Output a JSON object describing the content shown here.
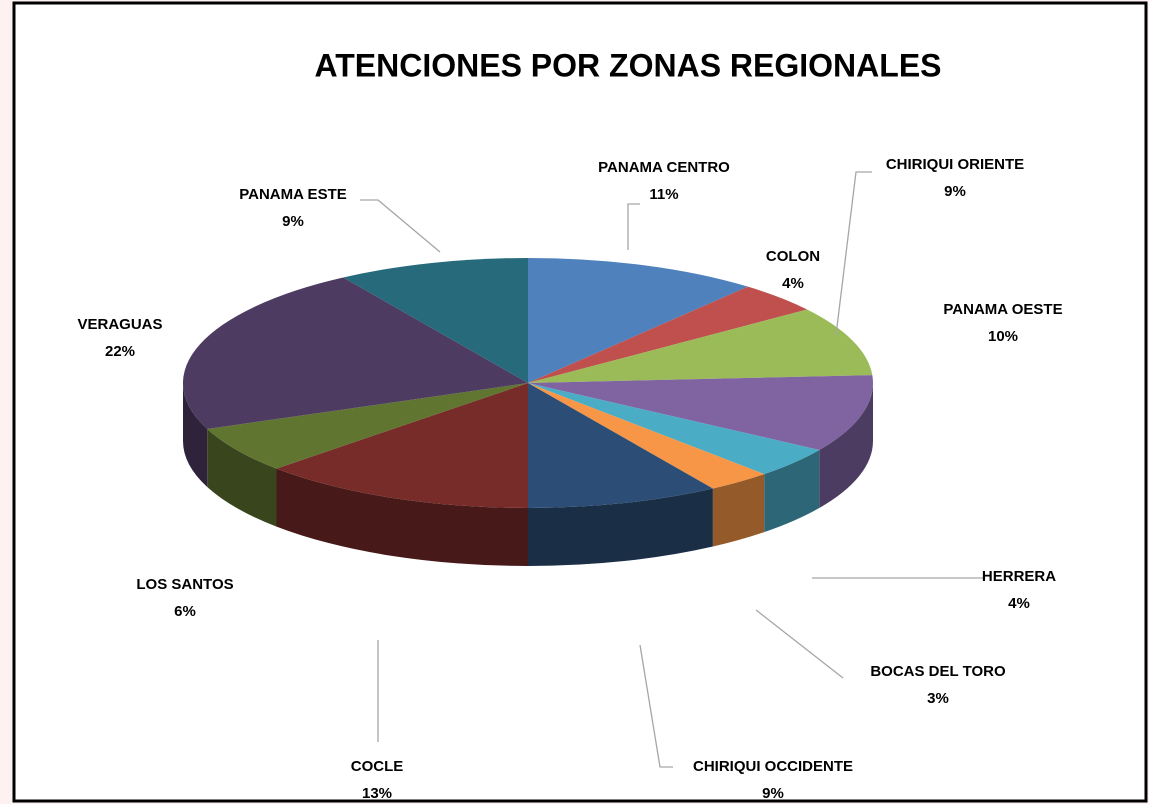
{
  "chart_data": {
    "type": "pie3d",
    "title": "ATENCIONES POR ZONAS REGIONALES",
    "categories": [
      "PANAMA CENTRO",
      "COLON",
      "CHIRIQUI ORIENTE",
      "PANAMA OESTE",
      "HERRERA",
      "BOCAS DEL TORO",
      "CHIRIQUI OCCIDENTE",
      "COCLE",
      "LOS SANTOS",
      "VERAGUAS",
      "PANAMA ESTE"
    ],
    "values": [
      11,
      4,
      9,
      10,
      4,
      3,
      9,
      13,
      6,
      22,
      9
    ],
    "value_labels": [
      "11%",
      "4%",
      "9%",
      "10%",
      "4%",
      "3%",
      "9%",
      "13%",
      "6%",
      "22%",
      "9%"
    ],
    "colors": [
      "#4f81bd",
      "#c0504d",
      "#9bbb59",
      "#8064a2",
      "#4bacc6",
      "#f79646",
      "#2c4d75",
      "#772c2a",
      "#5f7530",
      "#4d3b62",
      "#276a7c"
    ]
  }
}
